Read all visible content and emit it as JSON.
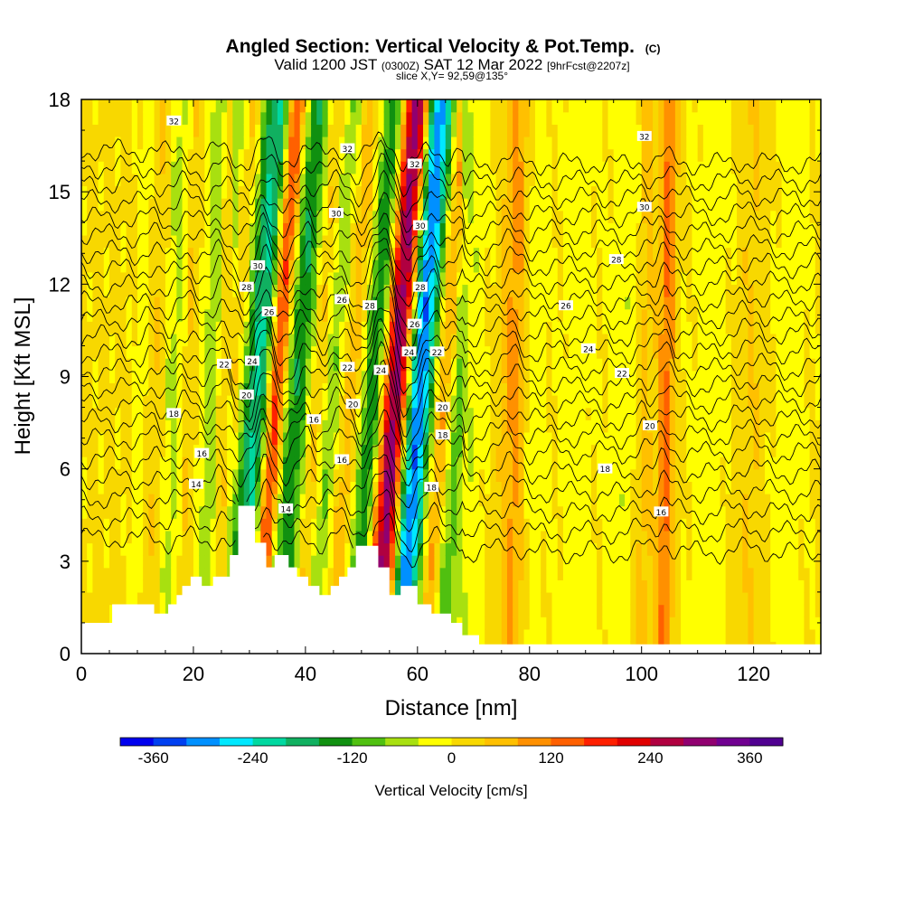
{
  "chart_data": {
    "type": "heatmap",
    "title": "Angled Section: Vertical Velocity & Pot.Temp.",
    "title_mark": "(C)",
    "subtitle_parts": [
      "Valid 1200 JST ",
      "(0300Z)",
      " SAT 12 Mar 2022 ",
      "[9hrFcst@2207z]"
    ],
    "slice_label": "slice X,Y= 92,59@135°",
    "xlabel": "Distance [nm]",
    "ylabel": "Height [Kft MSL]",
    "xlim": [
      0,
      132
    ],
    "ylim": [
      0,
      18
    ],
    "xticks": [
      0,
      20,
      40,
      60,
      80,
      100,
      120
    ],
    "yticks": [
      0,
      3,
      6,
      9,
      12,
      15,
      18
    ],
    "grid": false,
    "colorbar": {
      "label": "Vertical Velocity [cm/s]",
      "ticks": [
        -360,
        -240,
        -120,
        0,
        120,
        240,
        360
      ],
      "min": -400,
      "max": 400,
      "colors": [
        "#0000ee",
        "#0040f0",
        "#0090ff",
        "#00e8ff",
        "#00d8a0",
        "#10b060",
        "#109010",
        "#50c010",
        "#a8e010",
        "#ffff00",
        "#f8d800",
        "#ffc000",
        "#ff9000",
        "#ff6000",
        "#ff2000",
        "#e00000",
        "#b00040",
        "#900070",
        "#700090",
        "#500090"
      ]
    },
    "wave_bands": [
      {
        "x": 10.5,
        "w": -40,
        "width": 1.2
      },
      {
        "x": 12,
        "w": 40,
        "width": 1.2
      },
      {
        "x": 16,
        "w": -70,
        "width": 1.5
      },
      {
        "x": 18,
        "w": 50,
        "width": 1.2
      },
      {
        "x": 22.5,
        "w": -80,
        "width": 1.5
      },
      {
        "x": 25,
        "w": 70,
        "width": 1.3
      },
      {
        "x": 28,
        "w": -160,
        "width": 1.6
      },
      {
        "x": 30.5,
        "w": -240,
        "width": 1.3
      },
      {
        "x": 32.5,
        "w": 280,
        "width": 1.8
      },
      {
        "x": 35,
        "w": -200,
        "width": 1.6
      },
      {
        "x": 37.5,
        "w": -80,
        "width": 1.3
      },
      {
        "x": 40,
        "w": 60,
        "width": 1.2
      },
      {
        "x": 42.5,
        "w": -90,
        "width": 1.4
      },
      {
        "x": 46,
        "w": 60,
        "width": 1.3
      },
      {
        "x": 50,
        "w": -170,
        "width": 1.6
      },
      {
        "x": 52.5,
        "w": 70,
        "width": 1.2
      },
      {
        "x": 54.5,
        "w": 300,
        "width": 1.7
      },
      {
        "x": 57.5,
        "w": -330,
        "width": 1.6
      },
      {
        "x": 60,
        "w": -120,
        "width": 1.4
      },
      {
        "x": 62.5,
        "w": 120,
        "width": 1.5
      },
      {
        "x": 65,
        "w": -120,
        "width": 1.5
      },
      {
        "x": 69,
        "w": -40,
        "width": 2.0
      },
      {
        "x": 77,
        "w": 90,
        "width": 1.6
      },
      {
        "x": 80,
        "w": -40,
        "width": 1.8
      },
      {
        "x": 88,
        "w": -30,
        "width": 2.5
      },
      {
        "x": 97,
        "w": -40,
        "width": 2.5
      },
      {
        "x": 100,
        "w": 60,
        "width": 1.2
      },
      {
        "x": 104,
        "w": 120,
        "width": 1.0
      },
      {
        "x": 112,
        "w": -30,
        "width": 3.0
      },
      {
        "x": 119,
        "w": 30,
        "width": 2.0
      },
      {
        "x": 126,
        "w": -30,
        "width": 2.5
      }
    ],
    "wave_background": 10,
    "terrain": [
      [
        0,
        1.0
      ],
      [
        5.5,
        1.0
      ],
      [
        5.5,
        1.6
      ],
      [
        13,
        1.6
      ],
      [
        13,
        1.3
      ],
      [
        15.5,
        1.3
      ],
      [
        15.5,
        1.6
      ],
      [
        17,
        1.6
      ],
      [
        17,
        1.9
      ],
      [
        18,
        1.9
      ],
      [
        18,
        2.2
      ],
      [
        19.5,
        2.2
      ],
      [
        19.5,
        2.5
      ],
      [
        21.5,
        2.5
      ],
      [
        21.5,
        2.2
      ],
      [
        23.5,
        2.2
      ],
      [
        23.5,
        2.5
      ],
      [
        26.5,
        2.5
      ],
      [
        26.5,
        3.2
      ],
      [
        28,
        3.2
      ],
      [
        28,
        4.8
      ],
      [
        31,
        4.8
      ],
      [
        31,
        3.6
      ],
      [
        33,
        3.6
      ],
      [
        33,
        2.8
      ],
      [
        34.5,
        2.8
      ],
      [
        34.5,
        3.2
      ],
      [
        37,
        3.2
      ],
      [
        37,
        2.8
      ],
      [
        38.5,
        2.8
      ],
      [
        38.5,
        2.5
      ],
      [
        40.5,
        2.5
      ],
      [
        40.5,
        2.2
      ],
      [
        42.5,
        2.2
      ],
      [
        42.5,
        1.9
      ],
      [
        44.5,
        1.9
      ],
      [
        44.5,
        2.2
      ],
      [
        46,
        2.2
      ],
      [
        46,
        2.5
      ],
      [
        47.5,
        2.5
      ],
      [
        47.5,
        2.8
      ],
      [
        49,
        2.8
      ],
      [
        49,
        3.5
      ],
      [
        53,
        3.5
      ],
      [
        53,
        2.8
      ],
      [
        55,
        2.8
      ],
      [
        55,
        1.9
      ],
      [
        57,
        1.9
      ],
      [
        57,
        2.2
      ],
      [
        60,
        2.2
      ],
      [
        60,
        1.6
      ],
      [
        62.5,
        1.6
      ],
      [
        62.5,
        1.3
      ],
      [
        66,
        1.3
      ],
      [
        66,
        1.0
      ],
      [
        68,
        1.0
      ],
      [
        68,
        0.6
      ],
      [
        71,
        0.6
      ],
      [
        71,
        0.3
      ],
      [
        132,
        0.3
      ]
    ],
    "isentropes": [
      13,
      14,
      15,
      16,
      17,
      18,
      19,
      20,
      21,
      22,
      23,
      24,
      25,
      26,
      27,
      28,
      29,
      30,
      31,
      32,
      33,
      34,
      35
    ],
    "isentrope_labels": [
      {
        "value": "14",
        "x": 20.5,
        "y": 5.5
      },
      {
        "value": "16",
        "x": 21.5,
        "y": 6.5
      },
      {
        "value": "18",
        "x": 16.5,
        "y": 7.8
      },
      {
        "value": "22",
        "x": 25.5,
        "y": 9.4
      },
      {
        "value": "32",
        "x": 16.5,
        "y": 17.3
      },
      {
        "value": "30",
        "x": 31.5,
        "y": 12.6
      },
      {
        "value": "28",
        "x": 29.5,
        "y": 11.9
      },
      {
        "value": "26",
        "x": 33.5,
        "y": 11.1
      },
      {
        "value": "24",
        "x": 30.5,
        "y": 9.5
      },
      {
        "value": "20",
        "x": 29.5,
        "y": 8.4
      },
      {
        "value": "14",
        "x": 36.5,
        "y": 4.7
      },
      {
        "value": "16",
        "x": 41.5,
        "y": 7.6
      },
      {
        "value": "16",
        "x": 46.5,
        "y": 6.3
      },
      {
        "value": "22",
        "x": 47.5,
        "y": 9.3
      },
      {
        "value": "20",
        "x": 48.5,
        "y": 8.1
      },
      {
        "value": "26",
        "x": 46.5,
        "y": 11.5
      },
      {
        "value": "30",
        "x": 45.5,
        "y": 14.3
      },
      {
        "value": "32",
        "x": 47.5,
        "y": 16.4
      },
      {
        "value": "28",
        "x": 51.5,
        "y": 11.3
      },
      {
        "value": "24",
        "x": 53.5,
        "y": 9.2
      },
      {
        "value": "32",
        "x": 59.5,
        "y": 15.9
      },
      {
        "value": "30",
        "x": 60.5,
        "y": 13.9
      },
      {
        "value": "28",
        "x": 60.5,
        "y": 11.9
      },
      {
        "value": "26",
        "x": 59.5,
        "y": 10.7
      },
      {
        "value": "24",
        "x": 58.5,
        "y": 9.8
      },
      {
        "value": "22",
        "x": 63.5,
        "y": 9.8
      },
      {
        "value": "20",
        "x": 64.5,
        "y": 8.0
      },
      {
        "value": "18",
        "x": 64.5,
        "y": 7.1
      },
      {
        "value": "18",
        "x": 62.5,
        "y": 5.4
      },
      {
        "value": "32",
        "x": 100.5,
        "y": 16.8
      },
      {
        "value": "30",
        "x": 100.5,
        "y": 14.5
      },
      {
        "value": "28",
        "x": 95.5,
        "y": 12.8
      },
      {
        "value": "26",
        "x": 86.5,
        "y": 11.3
      },
      {
        "value": "24",
        "x": 90.5,
        "y": 9.9
      },
      {
        "value": "22",
        "x": 96.5,
        "y": 9.1
      },
      {
        "value": "20",
        "x": 101.5,
        "y": 7.4
      },
      {
        "value": "18",
        "x": 93.5,
        "y": 6.0
      },
      {
        "value": "16",
        "x": 103.5,
        "y": 4.6
      }
    ]
  }
}
